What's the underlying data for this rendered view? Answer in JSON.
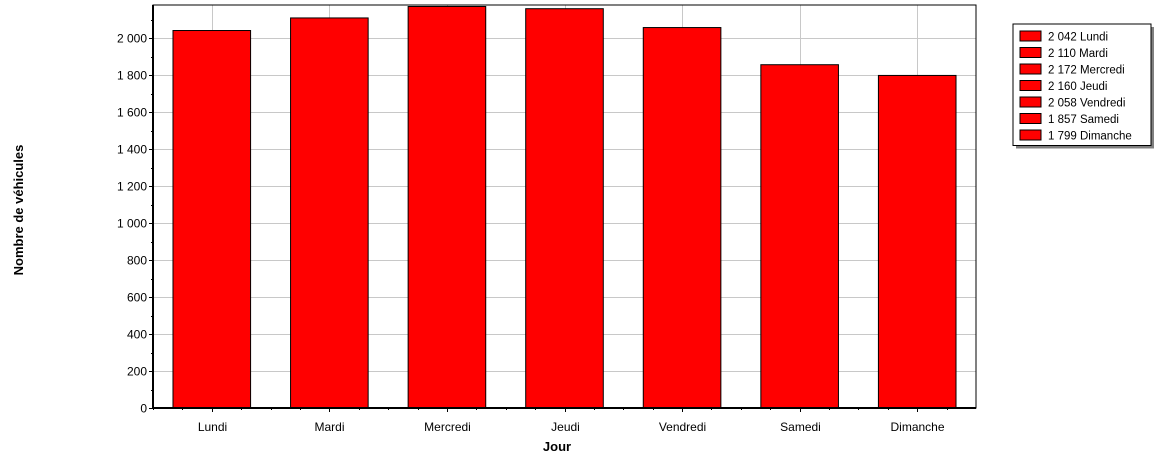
{
  "chart_data": {
    "type": "bar",
    "categories": [
      "Lundi",
      "Mardi",
      "Mercredi",
      "Jeudi",
      "Vendredi",
      "Samedi",
      "Dimanche"
    ],
    "values": [
      2042,
      2110,
      2172,
      2160,
      2058,
      1857,
      1799
    ],
    "xlabel": "Jour",
    "ylabel": "Nombre de véhicules",
    "ylim": [
      0,
      2180
    ],
    "yticks": [
      0,
      200,
      400,
      600,
      800,
      1000,
      1200,
      1400,
      1600,
      1800,
      2000
    ],
    "ytick_labels": [
      "0",
      "200",
      "400",
      "600",
      "800",
      "1 000",
      "1 200",
      "1 400",
      "1 600",
      "1 800",
      "2 000"
    ],
    "grid": true,
    "bar_color": "#ff0000",
    "legend": {
      "placement": "top-right",
      "entries": [
        "2 042 Lundi",
        "2 110 Mardi",
        "2 172 Mercredi",
        "2 160 Jeudi",
        "2 058 Vendredi",
        "1 857 Samedi",
        "1 799 Dimanche"
      ]
    }
  }
}
